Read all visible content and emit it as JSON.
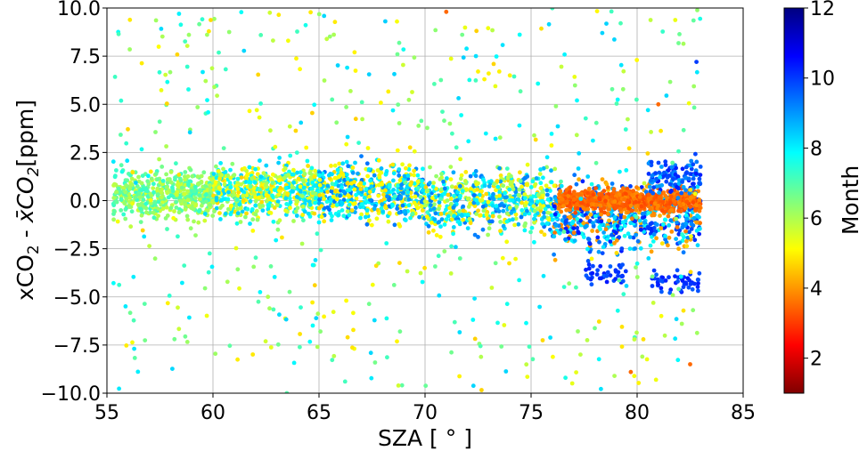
{
  "chart_data": {
    "type": "scatter",
    "title": "",
    "xlabel": "SZA [ ° ]",
    "ylabel_parts": {
      "a": "xCO",
      "b": "2",
      "c": " - ",
      "d": "x̄CO",
      "e": "2",
      "f": "[ppm]"
    },
    "xlim": [
      55,
      85
    ],
    "ylim": [
      -10,
      10
    ],
    "xticks": [
      "55",
      "60",
      "65",
      "70",
      "75",
      "80",
      "85"
    ],
    "yticks": [
      "10.0",
      "7.5",
      "5.0",
      "2.5",
      "0.0",
      "−2.5",
      "−5.0",
      "−7.5",
      "−10.0"
    ],
    "xtick_values": [
      55,
      60,
      65,
      70,
      75,
      80,
      85
    ],
    "ytick_values": [
      10,
      7.5,
      5,
      2.5,
      0,
      -2.5,
      -5,
      -7.5,
      -10
    ],
    "grid": true,
    "colorbar": {
      "label": "Month",
      "colormap": "jet",
      "range": [
        1,
        12
      ],
      "ticks": [
        "2",
        "4",
        "6",
        "8",
        "10",
        "12"
      ],
      "tick_values": [
        2,
        4,
        6,
        8,
        10,
        12
      ]
    },
    "clusters": [
      {
        "sza": [
          55.3,
          60
        ],
        "center": 0.3,
        "spread": 1.0,
        "months": [
          6,
          7
        ],
        "n": 500
      },
      {
        "sza": [
          60,
          65
        ],
        "center": 0.5,
        "spread": 1.1,
        "months": [
          5,
          7,
          8
        ],
        "n": 550
      },
      {
        "sza": [
          65,
          70
        ],
        "center": 0.4,
        "spread": 1.2,
        "months": [
          5,
          8,
          4
        ],
        "n": 550
      },
      {
        "sza": [
          70,
          76
        ],
        "center": 0.0,
        "spread": 1.3,
        "months": [
          5,
          7,
          4,
          8
        ],
        "n": 550
      },
      {
        "sza": [
          76,
          83
        ],
        "center": -0.8,
        "spread": 1.4,
        "months": [
          4,
          3,
          9,
          5
        ],
        "n": 650
      },
      {
        "sza": [
          76.3,
          83
        ],
        "center": 0.0,
        "spread": 0.45,
        "months": [
          9.5
        ],
        "n": 650
      },
      {
        "sza": [
          77.5,
          79.5
        ],
        "center": -3.8,
        "spread": 0.4,
        "months": [
          3
        ],
        "n": 40
      },
      {
        "sza": [
          80.5,
          83
        ],
        "center": -4.2,
        "spread": 0.45,
        "months": [
          3
        ],
        "n": 50
      },
      {
        "sza": [
          80.5,
          83
        ],
        "center": 1.2,
        "spread": 0.8,
        "months": [
          3,
          4
        ],
        "n": 120
      }
    ],
    "outliers": [
      {
        "sza": [
          55.3,
          83
        ],
        "range": [
          -10,
          10
        ],
        "months": [
          5,
          6,
          7,
          8
        ],
        "n": 520
      }
    ],
    "notable_points": [
      {
        "x": 72.5,
        "y": 6.7,
        "month": 8
      },
      {
        "x": 73.0,
        "y": 6.6,
        "month": 8
      },
      {
        "x": 73.5,
        "y": 6.7,
        "month": 8
      },
      {
        "x": 74.0,
        "y": 6.5,
        "month": 8
      },
      {
        "x": 72.8,
        "y": 6.3,
        "month": 8
      },
      {
        "x": 71.0,
        "y": 9.8,
        "month": 9.5
      },
      {
        "x": 82.8,
        "y": 7.2,
        "month": 3
      },
      {
        "x": 58.4,
        "y": 9.7,
        "month": 5
      },
      {
        "x": 82.5,
        "y": -8.5,
        "month": 9.5
      },
      {
        "x": 79.7,
        "y": -8.9,
        "month": 9.5
      },
      {
        "x": 81.0,
        "y": 5.0,
        "month": 9.5
      }
    ]
  }
}
